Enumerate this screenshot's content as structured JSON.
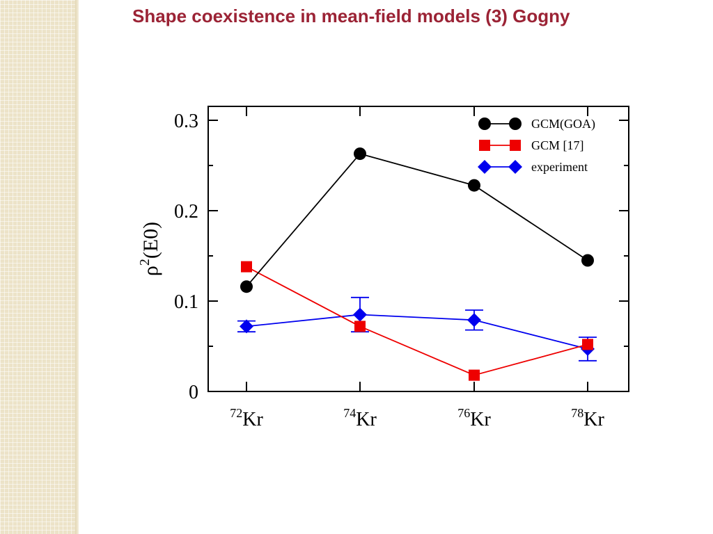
{
  "slide": {
    "title": "Shape coexistence in mean-field models (3) Gogny"
  },
  "chart_data": {
    "type": "line",
    "categories": [
      "72",
      "74",
      "76",
      "78"
    ],
    "category_suffix": "Kr",
    "ylabel_base": "ρ",
    "ylabel_sup": "2",
    "ylabel_rest": "(E0)",
    "ylim": [
      0,
      0.3
    ],
    "yticks": [
      "0",
      "0.1",
      "0.2",
      "0.3"
    ],
    "legend_position": "top-right",
    "series": [
      {
        "name": "GCM(GOA)",
        "color": "#000000",
        "marker": "circle",
        "values": [
          0.116,
          0.263,
          0.228,
          0.145
        ]
      },
      {
        "name": "GCM [17]",
        "color": "#ee0000",
        "marker": "square",
        "values": [
          0.138,
          0.072,
          0.018,
          0.052
        ]
      },
      {
        "name": "experiment",
        "color": "#0000ee",
        "marker": "diamond",
        "values": [
          0.072,
          0.085,
          0.079,
          0.047
        ],
        "errors": [
          0.006,
          0.019,
          0.011,
          0.013
        ]
      }
    ]
  }
}
